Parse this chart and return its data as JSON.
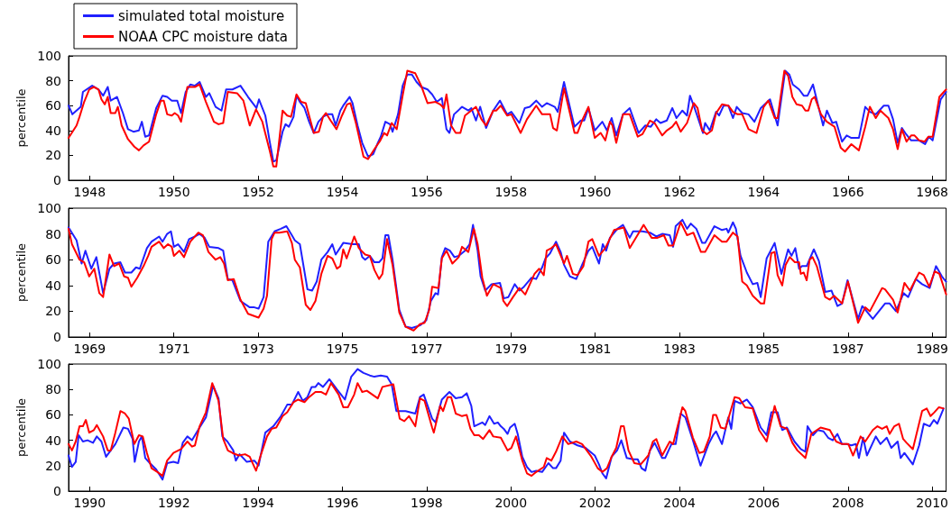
{
  "chart_data": [
    {
      "type": "line",
      "ylabel": "percentile",
      "xlim": [
        1947.5,
        1968.33
      ],
      "xticks": [
        1948,
        1950,
        1952,
        1954,
        1956,
        1958,
        1960,
        1962,
        1964,
        1966,
        1968
      ],
      "ylim": [
        0,
        100
      ],
      "yticks": [
        0,
        20,
        40,
        60,
        80,
        100
      ],
      "legend": "top left",
      "marker": "none",
      "line_style": "solid",
      "grid": false,
      "series": [
        {
          "name": "simulated total moisture",
          "color": "#2020ff",
          "x": [
            1947.5,
            1947.59,
            1947.79,
            1947.84,
            1948.06,
            1948.21,
            1948.32,
            1948.43,
            1948.5,
            1948.65,
            1948.79,
            1948.91,
            1949.04,
            1949.17,
            1949.24,
            1949.32,
            1949.41,
            1949.58,
            1949.73,
            1949.84,
            1949.95,
            1950.08,
            1950.17,
            1950.28,
            1950.39,
            1950.5,
            1950.61,
            1950.76,
            1950.84,
            1950.99,
            1951.13,
            1951.24,
            1951.39,
            1951.58,
            1951.76,
            1951.87,
            1951.96,
            1952.02,
            1952.17,
            1952.28,
            1952.36,
            1952.43,
            1952.58,
            1952.65,
            1952.73,
            1952.84,
            1952.91,
            1952.99,
            1953.1,
            1953.21,
            1953.32,
            1953.43,
            1953.54,
            1953.65,
            1953.76,
            1953.84,
            1953.95,
            1954.02,
            1954.17,
            1954.24,
            1954.36,
            1954.47,
            1954.61,
            1954.73,
            1954.84,
            1954.91,
            1955.02,
            1955.13,
            1955.19,
            1955.32,
            1955.43,
            1955.54,
            1955.65,
            1955.76,
            1955.87,
            1956.02,
            1956.13,
            1956.24,
            1956.36,
            1956.47,
            1956.54,
            1956.65,
            1956.84,
            1956.99,
            1957.06,
            1957.17,
            1957.27,
            1957.41,
            1957.58,
            1957.74,
            1957.91,
            1958.01,
            1958.2,
            1958.33,
            1958.45,
            1958.6,
            1958.74,
            1958.85,
            1959.04,
            1959.11,
            1959.26,
            1959.44,
            1959.51,
            1959.66,
            1959.74,
            1959.84,
            1959.99,
            1960.17,
            1960.28,
            1960.39,
            1960.5,
            1960.66,
            1960.82,
            1961.03,
            1961.19,
            1961.32,
            1961.45,
            1961.55,
            1961.7,
            1961.83,
            1961.93,
            1962.07,
            1962.18,
            1962.25,
            1962.36,
            1962.56,
            1962.61,
            1962.72,
            1962.87,
            1962.94,
            1963.05,
            1963.16,
            1963.27,
            1963.36,
            1963.49,
            1963.64,
            1963.78,
            1963.93,
            1964.15,
            1964.33,
            1964.51,
            1964.61,
            1964.69,
            1964.84,
            1964.95,
            1965.04,
            1965.17,
            1965.41,
            1965.5,
            1965.63,
            1965.72,
            1965.86,
            1965.97,
            1966.08,
            1966.26,
            1966.41,
            1966.52,
            1966.66,
            1966.85,
            1966.96,
            1967.07,
            1967.18,
            1967.28,
            1967.38,
            1967.5,
            1967.69,
            1967.83,
            1967.92,
            1968.01,
            1968.2,
            1968.33
          ],
          "values": [
            60,
            53,
            59,
            71,
            76,
            73,
            68,
            75,
            64,
            67,
            54,
            41,
            39,
            40,
            47,
            35,
            36,
            58,
            68,
            67,
            64,
            64,
            54,
            71,
            77,
            76,
            79,
            67,
            70,
            59,
            56,
            73,
            73,
            76,
            67,
            62,
            58,
            65,
            52,
            30,
            15,
            16,
            39,
            45,
            43,
            51,
            68,
            63,
            58,
            47,
            38,
            47,
            51,
            53,
            53,
            44,
            56,
            60,
            67,
            62,
            44,
            30,
            19,
            21,
            30,
            35,
            47,
            45,
            39,
            53,
            76,
            85,
            85,
            79,
            75,
            73,
            69,
            63,
            66,
            41,
            38,
            53,
            59,
            56,
            58,
            48,
            59,
            42,
            56,
            64,
            53,
            55,
            46,
            58,
            59,
            64,
            59,
            62,
            59,
            55,
            79,
            53,
            43,
            48,
            48,
            58,
            40,
            47,
            40,
            50,
            36,
            53,
            58,
            38,
            44,
            43,
            49,
            46,
            48,
            58,
            50,
            56,
            52,
            68,
            58,
            38,
            46,
            40,
            55,
            52,
            60,
            60,
            50,
            59,
            54,
            53,
            47,
            58,
            65,
            44,
            88,
            85,
            77,
            73,
            68,
            68,
            77,
            44,
            56,
            46,
            47,
            31,
            36,
            34,
            34,
            59,
            55,
            53,
            60,
            60,
            49,
            30,
            42,
            37,
            32,
            32,
            29,
            35,
            32,
            65,
            71
          ]
        },
        {
          "name": "NOAA CPC moisture data",
          "color": "#ff0000",
          "x": [
            1947.5,
            1947.69,
            1947.76,
            1947.87,
            1947.99,
            1948.1,
            1948.21,
            1948.28,
            1948.36,
            1948.43,
            1948.5,
            1948.61,
            1948.67,
            1948.76,
            1948.91,
            1949.06,
            1949.17,
            1949.28,
            1949.41,
            1949.58,
            1949.69,
            1949.76,
            1949.84,
            1949.95,
            1950.02,
            1950.1,
            1950.17,
            1950.32,
            1950.5,
            1950.61,
            1950.76,
            1950.95,
            1951.06,
            1951.17,
            1951.28,
            1951.5,
            1951.65,
            1951.8,
            1951.95,
            1952.1,
            1952.28,
            1952.36,
            1952.43,
            1952.58,
            1952.69,
            1952.78,
            1952.91,
            1953.02,
            1953.13,
            1953.32,
            1953.44,
            1953.54,
            1953.61,
            1953.72,
            1953.86,
            1953.99,
            1954.11,
            1954.19,
            1954.32,
            1954.5,
            1954.61,
            1954.76,
            1954.9,
            1954.99,
            1955.06,
            1955.17,
            1955.29,
            1955.43,
            1955.54,
            1955.73,
            1955.87,
            1956.02,
            1956.21,
            1956.32,
            1956.41,
            1956.47,
            1956.58,
            1956.69,
            1956.8,
            1956.91,
            1957.17,
            1957.3,
            1957.41,
            1957.58,
            1957.65,
            1957.76,
            1957.91,
            1958.01,
            1958.23,
            1958.38,
            1958.6,
            1958.74,
            1958.93,
            1959.0,
            1959.09,
            1959.26,
            1959.51,
            1959.58,
            1959.69,
            1959.84,
            1959.99,
            1960.13,
            1960.24,
            1960.35,
            1960.41,
            1960.5,
            1960.66,
            1960.82,
            1961.01,
            1961.12,
            1961.3,
            1961.41,
            1961.59,
            1961.7,
            1961.83,
            1961.92,
            1962.03,
            1962.18,
            1962.34,
            1962.43,
            1962.54,
            1962.65,
            1962.77,
            1962.87,
            1963.01,
            1963.16,
            1963.27,
            1963.38,
            1963.49,
            1963.64,
            1963.83,
            1964.0,
            1964.11,
            1964.26,
            1964.33,
            1964.49,
            1964.58,
            1964.68,
            1964.78,
            1964.91,
            1964.99,
            1965.06,
            1965.14,
            1965.21,
            1965.36,
            1965.5,
            1965.68,
            1965.83,
            1965.93,
            1966.08,
            1966.26,
            1966.41,
            1966.52,
            1966.66,
            1966.77,
            1966.96,
            1967.07,
            1967.18,
            1967.28,
            1967.39,
            1967.5,
            1967.58,
            1967.69,
            1967.82,
            1967.91,
            1968.01,
            1968.17,
            1968.33
          ],
          "values": [
            34,
            44,
            51,
            63,
            73,
            75,
            73,
            65,
            61,
            67,
            54,
            54,
            59,
            44,
            33,
            27,
            24,
            28,
            31,
            53,
            64,
            64,
            53,
            52,
            54,
            52,
            47,
            75,
            75,
            77,
            63,
            47,
            45,
            46,
            71,
            70,
            64,
            44,
            57,
            47,
            23,
            11,
            11,
            56,
            52,
            51,
            69,
            63,
            62,
            38,
            39,
            51,
            54,
            48,
            41,
            52,
            61,
            62,
            46,
            19,
            17,
            25,
            32,
            38,
            36,
            46,
            41,
            68,
            88,
            86,
            76,
            62,
            63,
            61,
            58,
            69,
            44,
            38,
            38,
            52,
            59,
            49,
            44,
            56,
            56,
            60,
            52,
            53,
            38,
            49,
            60,
            53,
            53,
            42,
            40,
            74,
            38,
            38,
            48,
            59,
            34,
            38,
            32,
            47,
            44,
            30,
            53,
            53,
            35,
            37,
            48,
            46,
            36,
            40,
            43,
            47,
            39,
            46,
            62,
            58,
            40,
            37,
            40,
            54,
            61,
            60,
            55,
            53,
            53,
            41,
            38,
            59,
            64,
            50,
            50,
            88,
            84,
            67,
            61,
            60,
            56,
            56,
            65,
            67,
            53,
            47,
            43,
            26,
            23,
            29,
            24,
            43,
            59,
            50,
            56,
            50,
            41,
            25,
            41,
            31,
            36,
            36,
            32,
            31,
            35,
            35,
            67,
            73
          ]
        }
      ]
    },
    {
      "type": "line",
      "ylabel": "percentile",
      "xlim": [
        1968.5,
        1989.33
      ],
      "xticks": [
        1969,
        1971,
        1973,
        1975,
        1977,
        1979,
        1981,
        1983,
        1985,
        1987,
        1989
      ],
      "ylim": [
        0,
        100
      ],
      "yticks": [
        0,
        20,
        40,
        60,
        80,
        100
      ],
      "marker": "none",
      "line_style": "solid",
      "grid": false,
      "series": [
        {
          "color": "#2020ff",
          "x": [
            1968.5,
            1968.69,
            1968.81,
            1968.9,
            1969.04,
            1969.16,
            1969.32,
            1969.47,
            1969.58,
            1969.73,
            1969.84,
            1969.99,
            1970.1,
            1970.19,
            1970.36,
            1970.47,
            1970.65,
            1970.73,
            1970.84,
            1970.93,
            1971.0,
            1971.1,
            1971.24,
            1971.36,
            1971.5,
            1971.61,
            1971.73,
            1971.84,
            1972.06,
            1972.17,
            1972.28,
            1972.39,
            1972.58,
            1972.8,
            1972.91,
            1973.01,
            1973.13,
            1973.24,
            1973.39,
            1973.54,
            1973.67,
            1973.8,
            1973.87,
            1973.99,
            1974.17,
            1974.28,
            1974.39,
            1974.5,
            1974.65,
            1974.76,
            1974.84,
            1975.02,
            1975.24,
            1975.39,
            1975.47,
            1975.54,
            1975.65,
            1975.76,
            1975.87,
            1975.95,
            1976.02,
            1976.09,
            1976.19,
            1976.35,
            1976.5,
            1976.65,
            1976.84,
            1976.99,
            1977.1,
            1977.21,
            1977.27,
            1977.36,
            1977.44,
            1977.55,
            1977.66,
            1977.76,
            1977.91,
            1978.02,
            1978.1,
            1978.21,
            1978.28,
            1978.39,
            1978.54,
            1978.74,
            1978.83,
            1978.94,
            1979.09,
            1979.2,
            1979.31,
            1979.49,
            1979.6,
            1979.74,
            1979.82,
            1979.93,
            1980.07,
            1980.18,
            1980.26,
            1980.4,
            1980.55,
            1980.69,
            1980.84,
            1980.93,
            1981.09,
            1981.18,
            1981.26,
            1981.35,
            1981.53,
            1981.66,
            1981.82,
            1981.9,
            1982.12,
            1982.3,
            1982.45,
            1982.59,
            1982.77,
            1982.85,
            1982.91,
            1983.07,
            1983.18,
            1983.27,
            1983.4,
            1983.54,
            1983.61,
            1983.83,
            1984.01,
            1984.12,
            1984.16,
            1984.27,
            1984.34,
            1984.45,
            1984.6,
            1984.74,
            1984.85,
            1984.93,
            1985.07,
            1985.26,
            1985.42,
            1985.58,
            1985.66,
            1985.75,
            1985.84,
            1985.91,
            1986.02,
            1986.19,
            1986.31,
            1986.46,
            1986.61,
            1986.75,
            1986.86,
            1986.99,
            1987.24,
            1987.34,
            1987.59,
            1987.88,
            1987.99,
            1988.14,
            1988.32,
            1988.43,
            1988.61,
            1988.76,
            1988.94,
            1989.09,
            1989.23,
            1989.33
          ],
          "values": [
            85,
            75,
            57,
            67,
            53,
            62,
            34,
            53,
            57,
            58,
            50,
            50,
            54,
            53,
            69,
            74,
            78,
            74,
            80,
            82,
            70,
            72,
            66,
            76,
            78,
            80,
            77,
            70,
            69,
            67,
            45,
            44,
            28,
            23,
            23,
            22,
            31,
            74,
            82,
            84,
            86,
            79,
            75,
            72,
            37,
            36,
            43,
            60,
            66,
            72,
            64,
            73,
            72,
            72,
            62,
            60,
            63,
            58,
            58,
            61,
            79,
            79,
            60,
            21,
            8,
            7,
            9,
            13,
            28,
            34,
            33,
            62,
            69,
            67,
            62,
            63,
            67,
            72,
            87,
            67,
            47,
            36,
            41,
            42,
            30,
            31,
            41,
            36,
            39,
            46,
            45,
            54,
            61,
            65,
            74,
            66,
            56,
            47,
            45,
            56,
            67,
            70,
            57,
            72,
            67,
            77,
            84,
            87,
            77,
            82,
            82,
            81,
            78,
            80,
            79,
            70,
            86,
            91,
            84,
            88,
            84,
            73,
            73,
            86,
            83,
            84,
            81,
            89,
            84,
            63,
            50,
            41,
            42,
            31,
            61,
            73,
            49,
            68,
            63,
            69,
            53,
            55,
            55,
            68,
            59,
            35,
            36,
            24,
            26,
            44,
            14,
            24,
            14,
            26,
            26,
            20,
            34,
            31,
            45,
            41,
            38,
            55,
            47,
            43
          ]
        },
        {
          "color": "#ff0000",
          "x": [
            1968.5,
            1968.58,
            1968.76,
            1968.87,
            1968.99,
            1969.11,
            1969.23,
            1969.32,
            1969.47,
            1969.58,
            1969.7,
            1969.82,
            1969.91,
            1969.99,
            1970.13,
            1970.28,
            1970.39,
            1970.47,
            1970.65,
            1970.76,
            1970.86,
            1970.95,
            1971.0,
            1971.13,
            1971.24,
            1971.39,
            1971.58,
            1971.69,
            1971.82,
            1971.99,
            1972.1,
            1972.19,
            1972.28,
            1972.42,
            1972.5,
            1972.58,
            1972.76,
            1973.01,
            1973.13,
            1973.21,
            1973.32,
            1973.39,
            1973.5,
            1973.69,
            1973.8,
            1973.87,
            1973.99,
            1974.13,
            1974.24,
            1974.36,
            1974.5,
            1974.65,
            1974.76,
            1974.87,
            1974.95,
            1975.02,
            1975.1,
            1975.28,
            1975.39,
            1975.54,
            1975.65,
            1975.76,
            1975.87,
            1975.95,
            1976.06,
            1976.19,
            1976.35,
            1976.5,
            1976.69,
            1976.84,
            1976.95,
            1977.06,
            1977.13,
            1977.28,
            1977.36,
            1977.47,
            1977.61,
            1977.76,
            1977.84,
            1977.99,
            1978.12,
            1978.21,
            1978.32,
            1978.43,
            1978.58,
            1978.76,
            1978.82,
            1978.91,
            1979.05,
            1979.2,
            1979.34,
            1979.56,
            1979.67,
            1979.78,
            1979.85,
            1979.96,
            1980.07,
            1980.26,
            1980.33,
            1980.47,
            1980.58,
            1980.72,
            1980.84,
            1980.93,
            1981.09,
            1981.24,
            1981.45,
            1981.68,
            1981.82,
            1981.93,
            1982.15,
            1982.34,
            1982.48,
            1982.63,
            1982.74,
            1982.85,
            1983.03,
            1983.18,
            1983.33,
            1983.51,
            1983.61,
            1983.83,
            1984.01,
            1984.12,
            1984.27,
            1984.38,
            1984.49,
            1984.6,
            1984.74,
            1984.93,
            1985.01,
            1985.18,
            1985.26,
            1985.33,
            1985.44,
            1985.52,
            1985.62,
            1985.74,
            1985.84,
            1985.88,
            1985.95,
            1986.02,
            1986.09,
            1986.16,
            1986.26,
            1986.46,
            1986.57,
            1986.67,
            1986.86,
            1987.0,
            1987.24,
            1987.41,
            1987.52,
            1987.81,
            1987.88,
            1988.07,
            1988.18,
            1988.34,
            1988.47,
            1988.69,
            1988.8,
            1988.93,
            1989.06,
            1989.17,
            1989.33
          ],
          "values": [
            84,
            72,
            60,
            58,
            47,
            53,
            34,
            31,
            64,
            55,
            57,
            47,
            46,
            39,
            46,
            55,
            63,
            70,
            74,
            69,
            72,
            70,
            63,
            67,
            62,
            74,
            81,
            79,
            66,
            60,
            62,
            57,
            44,
            45,
            37,
            29,
            18,
            15,
            22,
            32,
            76,
            81,
            81,
            82,
            73,
            60,
            54,
            25,
            21,
            28,
            49,
            63,
            61,
            53,
            55,
            68,
            61,
            78,
            69,
            64,
            63,
            52,
            45,
            49,
            76,
            56,
            19,
            8,
            5,
            10,
            11,
            21,
            39,
            38,
            61,
            67,
            57,
            62,
            70,
            66,
            84,
            72,
            46,
            32,
            41,
            38,
            28,
            24,
            31,
            38,
            33,
            49,
            53,
            48,
            67,
            69,
            72,
            57,
            63,
            49,
            48,
            55,
            74,
            76,
            63,
            69,
            83,
            85,
            69,
            75,
            87,
            77,
            77,
            79,
            71,
            71,
            89,
            79,
            81,
            66,
            66,
            79,
            74,
            74,
            81,
            78,
            43,
            40,
            32,
            26,
            26,
            65,
            66,
            48,
            40,
            56,
            62,
            58,
            58,
            49,
            50,
            44,
            60,
            62,
            55,
            31,
            29,
            32,
            26,
            43,
            11,
            23,
            20,
            38,
            37,
            29,
            19,
            42,
            36,
            50,
            48,
            39,
            51,
            49,
            33
          ]
        }
      ]
    },
    {
      "type": "line",
      "ylabel": "percentile",
      "xlim": [
        1989.5,
        2010.33
      ],
      "xticks": [
        1990,
        1992,
        1994,
        1996,
        1998,
        2000,
        2002,
        2004,
        2006,
        2008,
        2010
      ],
      "ylim": [
        0,
        100
      ],
      "yticks": [
        0,
        20,
        40,
        60,
        80,
        100
      ],
      "marker": "none",
      "line_style": "solid",
      "grid": false,
      "series": [
        {
          "color": "#2020ff",
          "x": [
            1989.5,
            1989.58,
            1989.67,
            1989.74,
            1989.84,
            1989.95,
            1990.08,
            1990.17,
            1990.28,
            1990.39,
            1990.5,
            1990.61,
            1990.8,
            1990.91,
            1991.02,
            1991.07,
            1991.17,
            1991.24,
            1991.32,
            1991.43,
            1991.58,
            1991.73,
            1991.84,
            1991.99,
            1992.1,
            1992.21,
            1992.32,
            1992.43,
            1992.61,
            1992.76,
            1992.93,
            1993.06,
            1993.15,
            1993.27,
            1993.41,
            1993.47,
            1993.56,
            1993.73,
            1993.91,
            1994.01,
            1994.17,
            1994.36,
            1994.54,
            1994.69,
            1994.8,
            1994.95,
            1995.06,
            1995.17,
            1995.27,
            1995.36,
            1995.43,
            1995.54,
            1995.69,
            1995.87,
            1996.06,
            1996.21,
            1996.36,
            1996.5,
            1996.65,
            1996.76,
            1996.91,
            1997.06,
            1997.17,
            1997.28,
            1997.5,
            1997.73,
            1997.84,
            1997.93,
            1998.13,
            1998.21,
            1998.36,
            1998.54,
            1998.69,
            1998.84,
            1998.95,
            1999.06,
            1999.13,
            1999.32,
            1999.39,
            1999.49,
            1999.6,
            1999.69,
            1999.76,
            1999.83,
            1999.92,
            1999.98,
            2000.09,
            2000.16,
            2000.27,
            2000.38,
            2000.49,
            2000.6,
            2000.74,
            2000.89,
            2001.0,
            2001.07,
            2001.18,
            2001.26,
            2001.4,
            2001.58,
            2001.77,
            2001.88,
            2001.99,
            2002.09,
            2002.17,
            2002.26,
            2002.39,
            2002.52,
            2002.62,
            2002.75,
            2002.9,
            2003.01,
            2003.1,
            2003.19,
            2003.3,
            2003.41,
            2003.59,
            2003.66,
            2003.81,
            2003.91,
            2004.03,
            2004.14,
            2004.32,
            2004.5,
            2004.69,
            2004.8,
            2004.87,
            2005.01,
            2005.16,
            2005.23,
            2005.31,
            2005.45,
            2005.6,
            2005.74,
            2005.93,
            2006.07,
            2006.18,
            2006.33,
            2006.44,
            2006.55,
            2006.73,
            2006.88,
            2006.99,
            2007.04,
            2007.17,
            2007.28,
            2007.42,
            2007.53,
            2007.64,
            2007.75,
            2007.86,
            2007.97,
            2008.08,
            2008.19,
            2008.26,
            2008.36,
            2008.45,
            2008.66,
            2008.77,
            2008.92,
            2009.03,
            2009.18,
            2009.25,
            2009.34,
            2009.54,
            2009.69,
            2009.8,
            2009.94,
            2010.04,
            2010.12,
            2010.27
          ],
          "values": [
            28,
            19,
            23,
            44,
            39,
            40,
            38,
            43,
            39,
            27,
            32,
            37,
            50,
            49,
            41,
            23,
            39,
            43,
            26,
            22,
            17,
            9,
            22,
            23,
            22,
            38,
            43,
            40,
            50,
            58,
            83,
            73,
            43,
            39,
            32,
            24,
            29,
            23,
            24,
            20,
            46,
            51,
            59,
            68,
            68,
            78,
            71,
            74,
            82,
            82,
            85,
            82,
            88,
            80,
            72,
            90,
            96,
            93,
            91,
            90,
            91,
            90,
            84,
            63,
            63,
            61,
            74,
            76,
            57,
            54,
            72,
            78,
            73,
            74,
            77,
            67,
            51,
            54,
            52,
            59,
            53,
            54,
            51,
            49,
            45,
            50,
            53,
            45,
            27,
            19,
            15,
            16,
            15,
            22,
            18,
            18,
            24,
            46,
            39,
            36,
            34,
            31,
            28,
            21,
            14,
            10,
            27,
            32,
            40,
            26,
            25,
            25,
            18,
            16,
            32,
            38,
            26,
            26,
            37,
            37,
            61,
            58,
            40,
            20,
            37,
            44,
            47,
            37,
            58,
            49,
            71,
            69,
            72,
            66,
            50,
            44,
            62,
            62,
            48,
            50,
            39,
            33,
            31,
            51,
            44,
            48,
            47,
            42,
            40,
            45,
            37,
            37,
            36,
            37,
            26,
            42,
            28,
            43,
            37,
            42,
            34,
            39,
            26,
            30,
            21,
            36,
            53,
            51,
            56,
            53,
            65
          ]
        },
        {
          "color": "#ff0000",
          "x": [
            1989.5,
            1989.58,
            1989.67,
            1989.76,
            1989.84,
            1989.91,
            1989.99,
            1990.1,
            1990.17,
            1990.32,
            1990.43,
            1990.5,
            1990.61,
            1990.73,
            1990.84,
            1990.93,
            1991.06,
            1991.17,
            1991.26,
            1991.36,
            1991.47,
            1991.61,
            1991.73,
            1991.84,
            1991.99,
            1992.17,
            1992.32,
            1992.43,
            1992.5,
            1992.61,
            1992.76,
            1992.91,
            1993.06,
            1993.17,
            1993.28,
            1993.39,
            1993.54,
            1993.69,
            1993.8,
            1993.95,
            1994.06,
            1994.21,
            1994.32,
            1994.43,
            1994.58,
            1994.69,
            1994.84,
            1994.95,
            1995.1,
            1995.21,
            1995.36,
            1995.5,
            1995.61,
            1995.73,
            1995.91,
            1996.02,
            1996.13,
            1996.28,
            1996.36,
            1996.47,
            1996.58,
            1996.84,
            1996.95,
            1997.21,
            1997.36,
            1997.47,
            1997.58,
            1997.73,
            1997.84,
            1997.95,
            1998.13,
            1998.17,
            1998.32,
            1998.39,
            1998.5,
            1998.58,
            1998.69,
            1998.84,
            1998.95,
            1999.04,
            1999.13,
            1999.24,
            1999.34,
            1999.49,
            1999.58,
            1999.76,
            1999.92,
            2000.01,
            2000.12,
            2000.27,
            2000.38,
            2000.49,
            2000.6,
            2000.78,
            2000.85,
            2000.96,
            2001.07,
            2001.22,
            2001.36,
            2001.55,
            2001.69,
            2001.91,
            2002.06,
            2002.17,
            2002.28,
            2002.39,
            2002.5,
            2002.61,
            2002.68,
            2002.79,
            2002.93,
            2003.08,
            2003.26,
            2003.37,
            2003.45,
            2003.59,
            2003.77,
            2003.85,
            2004.07,
            2004.14,
            2004.32,
            2004.47,
            2004.58,
            2004.72,
            2004.8,
            2004.87,
            2004.98,
            2005.09,
            2005.31,
            2005.42,
            2005.56,
            2005.74,
            2005.89,
            2006.07,
            2006.26,
            2006.4,
            2006.55,
            2006.68,
            2006.8,
            2006.99,
            2007.13,
            2007.35,
            2007.57,
            2007.72,
            2007.86,
            2008.01,
            2008.12,
            2008.3,
            2008.41,
            2008.59,
            2008.7,
            2008.81,
            2008.92,
            2008.99,
            2009.1,
            2009.21,
            2009.31,
            2009.39,
            2009.54,
            2009.76,
            2009.87,
            2009.96,
            2010.05,
            2010.16,
            2010.27
          ],
          "values": [
            37,
            32,
            39,
            51,
            51,
            56,
            46,
            48,
            52,
            43,
            32,
            32,
            46,
            63,
            61,
            57,
            37,
            44,
            43,
            30,
            18,
            15,
            12,
            24,
            30,
            33,
            39,
            35,
            36,
            51,
            62,
            85,
            71,
            41,
            32,
            30,
            28,
            29,
            27,
            16,
            28,
            43,
            49,
            50,
            59,
            62,
            70,
            72,
            70,
            74,
            78,
            78,
            76,
            85,
            76,
            66,
            66,
            76,
            85,
            78,
            79,
            73,
            82,
            84,
            57,
            55,
            59,
            51,
            73,
            71,
            50,
            46,
            67,
            63,
            74,
            74,
            61,
            59,
            60,
            49,
            44,
            44,
            41,
            48,
            43,
            42,
            32,
            34,
            43,
            24,
            14,
            12,
            15,
            19,
            26,
            24,
            31,
            43,
            37,
            39,
            37,
            27,
            18,
            15,
            18,
            27,
            34,
            51,
            51,
            32,
            22,
            21,
            28,
            39,
            41,
            28,
            39,
            37,
            66,
            63,
            42,
            30,
            31,
            43,
            60,
            60,
            50,
            49,
            74,
            73,
            66,
            65,
            48,
            39,
            67,
            51,
            49,
            38,
            32,
            26,
            45,
            50,
            48,
            39,
            37,
            37,
            28,
            43,
            39,
            48,
            51,
            49,
            51,
            45,
            51,
            53,
            41,
            38,
            33,
            63,
            65,
            59,
            62,
            66,
            65
          ]
        }
      ]
    }
  ]
}
